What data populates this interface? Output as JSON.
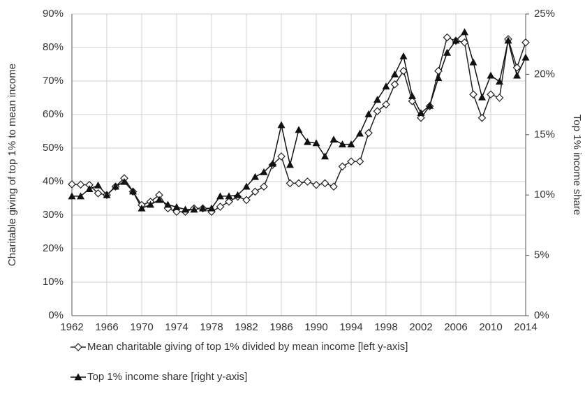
{
  "chart_data": {
    "type": "line",
    "y_label": "Charitable giving of top 1% to mean income",
    "y2_label": "Top 1% income share",
    "x": [
      1962,
      1963,
      1964,
      1965,
      1966,
      1967,
      1968,
      1969,
      1970,
      1971,
      1972,
      1973,
      1974,
      1975,
      1976,
      1977,
      1978,
      1979,
      1980,
      1981,
      1982,
      1983,
      1984,
      1985,
      1986,
      1987,
      1988,
      1989,
      1990,
      1991,
      1992,
      1993,
      1994,
      1995,
      1996,
      1997,
      1998,
      1999,
      2000,
      2001,
      2002,
      2003,
      2004,
      2005,
      2006,
      2007,
      2008,
      2009,
      2010,
      2011,
      2012,
      2013,
      2014
    ],
    "series": [
      {
        "name": "Mean charitable giving of top 1% divided by mean income [left y-axis]",
        "color": "#222222",
        "marker": "diamond",
        "axis": "y",
        "values": [
          39.2,
          39.1,
          39,
          36.5,
          36,
          38.5,
          41,
          37,
          33,
          34,
          36,
          32,
          31,
          31,
          32,
          32,
          31,
          32.5,
          34,
          35.5,
          34.5,
          37,
          38.5,
          45,
          47.5,
          39.5,
          39.5,
          40,
          39,
          39.5,
          38.5,
          44.5,
          46,
          46,
          54.5,
          61,
          63,
          69,
          73,
          64,
          59,
          62.5,
          73,
          83,
          82,
          81.5,
          66,
          59,
          66,
          65,
          82.5,
          74,
          81.5
        ]
      },
      {
        "name": "Top 1% income share [right y-axis]",
        "color": "#111111",
        "marker": "triangle",
        "axis": "y2",
        "values": [
          9.9,
          9.9,
          10.5,
          10.8,
          10,
          10.7,
          11.1,
          10.3,
          8.9,
          9.2,
          9.6,
          9.2,
          9,
          8.8,
          8.8,
          8.9,
          8.9,
          9.9,
          9.9,
          10,
          10.7,
          11.5,
          11.9,
          12.6,
          15.8,
          12.5,
          15.4,
          14.4,
          14.3,
          13.2,
          14.6,
          14.2,
          14.2,
          15.1,
          16.7,
          17.9,
          19,
          20,
          21.5,
          18.2,
          16.8,
          17.4,
          19.7,
          21.8,
          22.8,
          23.5,
          21,
          18.1,
          19.9,
          19.4,
          22.8,
          19.9,
          21.4
        ]
      }
    ],
    "xlim": [
      1962,
      2014
    ],
    "xticks": [
      1962,
      1966,
      1970,
      1974,
      1978,
      1982,
      1986,
      1990,
      1994,
      1998,
      2002,
      2006,
      2010,
      2014
    ],
    "ylim": [
      0,
      90
    ],
    "yticks": [
      {
        "value": 0,
        "label": "0%"
      },
      {
        "value": 10,
        "label": "10%"
      },
      {
        "value": 20,
        "label": "20%"
      },
      {
        "value": 30,
        "label": "30%"
      },
      {
        "value": 40,
        "label": "40%"
      },
      {
        "value": 50,
        "label": "50%"
      },
      {
        "value": 60,
        "label": "60%"
      },
      {
        "value": 70,
        "label": "70%"
      },
      {
        "value": 80,
        "label": "80%"
      },
      {
        "value": 90,
        "label": "90%"
      }
    ],
    "y2lim": [
      0,
      25
    ],
    "y2ticks": [
      {
        "value": 0,
        "label": "0%"
      },
      {
        "value": 5,
        "label": "5%"
      },
      {
        "value": 10,
        "label": "10%"
      },
      {
        "value": 15,
        "label": "15%"
      },
      {
        "value": 20,
        "label": "20%"
      },
      {
        "value": 25,
        "label": "25%"
      }
    ],
    "grid": true
  }
}
